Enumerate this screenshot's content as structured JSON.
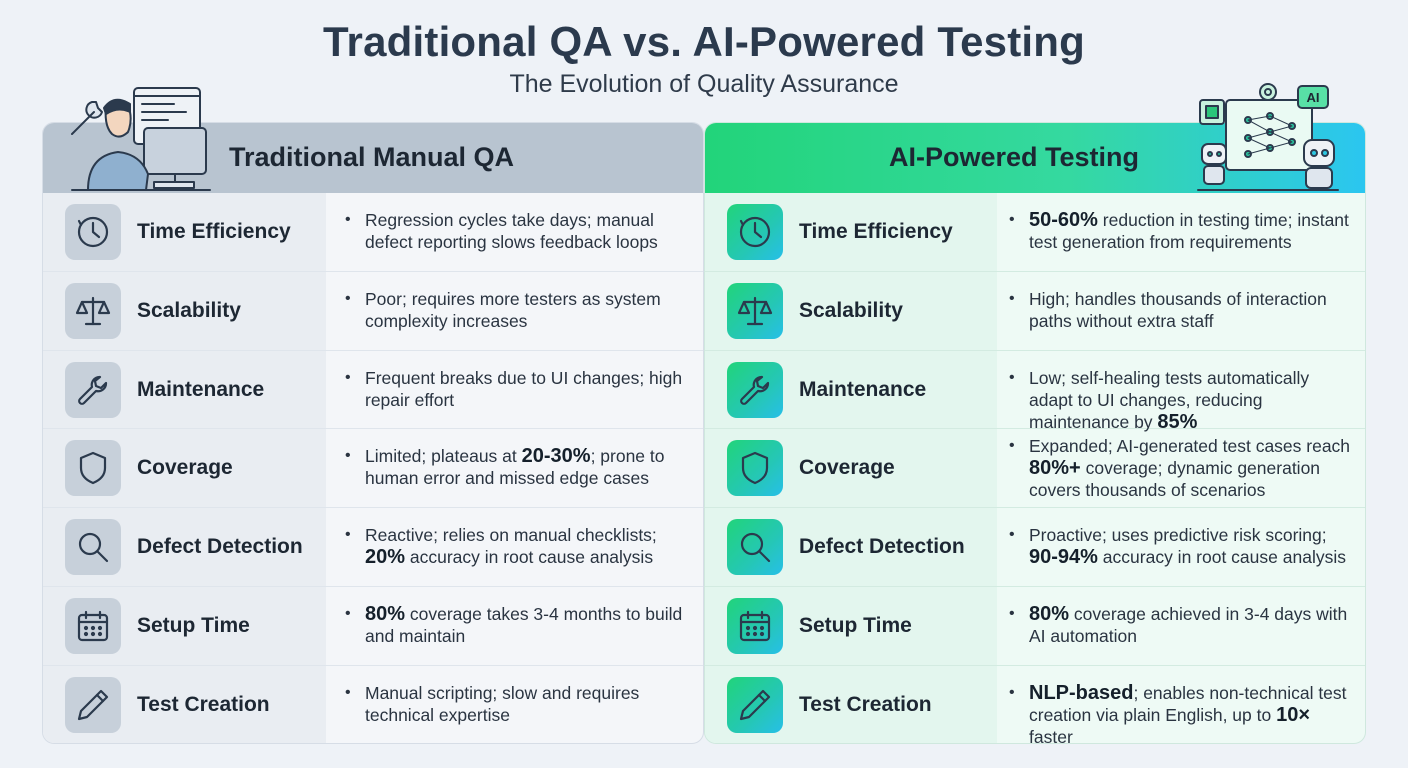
{
  "header": {
    "title": "Traditional QA vs. AI-Powered Testing",
    "subtitle": "The Evolution of Quality Assurance"
  },
  "left_panel": {
    "title": "Traditional Manual QA",
    "rows": [
      {
        "icon": "clock-icon",
        "category": "Time Efficiency",
        "parts": [
          {
            "t": "Regression cycles take days; manual defect reporting slows feedback loops",
            "b": false
          }
        ]
      },
      {
        "icon": "scale-icon",
        "category": "Scalability",
        "parts": [
          {
            "t": "Poor; requires more testers as system complexity increases",
            "b": false
          }
        ]
      },
      {
        "icon": "wrench-icon",
        "category": "Maintenance",
        "parts": [
          {
            "t": "Frequent breaks due to UI changes; high repair effort",
            "b": false
          }
        ]
      },
      {
        "icon": "shield-icon",
        "category": "Coverage",
        "parts": [
          {
            "t": "Limited; plateaus at ",
            "b": false
          },
          {
            "t": "20-30%",
            "b": true
          },
          {
            "t": "; prone to human error and missed edge cases",
            "b": false
          }
        ]
      },
      {
        "icon": "magnifier-icon",
        "category": "Defect Detection",
        "parts": [
          {
            "t": "Reactive; relies on manual checklists; ",
            "b": false
          },
          {
            "t": "20%",
            "b": true
          },
          {
            "t": " accuracy in root cause analysis",
            "b": false
          }
        ]
      },
      {
        "icon": "calendar-icon",
        "category": "Setup Time",
        "parts": [
          {
            "t": "80%",
            "b": true
          },
          {
            "t": " coverage takes 3-4 months to build and maintain",
            "b": false
          }
        ]
      },
      {
        "icon": "pencil-icon",
        "category": "Test Creation",
        "parts": [
          {
            "t": "Manual scripting; slow and requires technical expertise",
            "b": false
          }
        ]
      }
    ]
  },
  "right_panel": {
    "title": "AI-Powered Testing",
    "illustration_badge": "AI",
    "rows": [
      {
        "icon": "clock-icon",
        "category": "Time Efficiency",
        "parts": [
          {
            "t": "50-60%",
            "b": true
          },
          {
            "t": " reduction in testing time; instant test generation from requirements",
            "b": false
          }
        ]
      },
      {
        "icon": "scale-icon",
        "category": "Scalability",
        "parts": [
          {
            "t": "High; handles thousands of interaction paths without extra staff",
            "b": false
          }
        ]
      },
      {
        "icon": "wrench-icon",
        "category": "Maintenance",
        "parts": [
          {
            "t": "Low; self-healing tests automatically adapt to UI changes, reducing maintenance by ",
            "b": false
          },
          {
            "t": "85%",
            "b": true
          }
        ]
      },
      {
        "icon": "shield-icon",
        "category": "Coverage",
        "parts": [
          {
            "t": "Expanded; AI-generated test cases reach ",
            "b": false
          },
          {
            "t": "80%+",
            "b": true
          },
          {
            "t": " coverage; dynamic generation covers thousands of scenarios",
            "b": false
          }
        ]
      },
      {
        "icon": "magnifier-icon",
        "category": "Defect Detection",
        "parts": [
          {
            "t": "Proactive; uses predictive risk scoring; ",
            "b": false
          },
          {
            "t": "90-94%",
            "b": true
          },
          {
            "t": " accuracy in root cause analysis",
            "b": false
          }
        ]
      },
      {
        "icon": "calendar-icon",
        "category": "Setup Time",
        "parts": [
          {
            "t": "80%",
            "b": true
          },
          {
            "t": " coverage achieved in 3-4 days with AI automation",
            "b": false
          }
        ]
      },
      {
        "icon": "pencil-icon",
        "category": "Test Creation",
        "parts": [
          {
            "t": "NLP-based",
            "b": true
          },
          {
            "t": "; enables non-technical test creation via plain English, up to ",
            "b": false
          },
          {
            "t": "10×",
            "b": true
          },
          {
            "t": " faster",
            "b": false
          }
        ]
      }
    ]
  }
}
